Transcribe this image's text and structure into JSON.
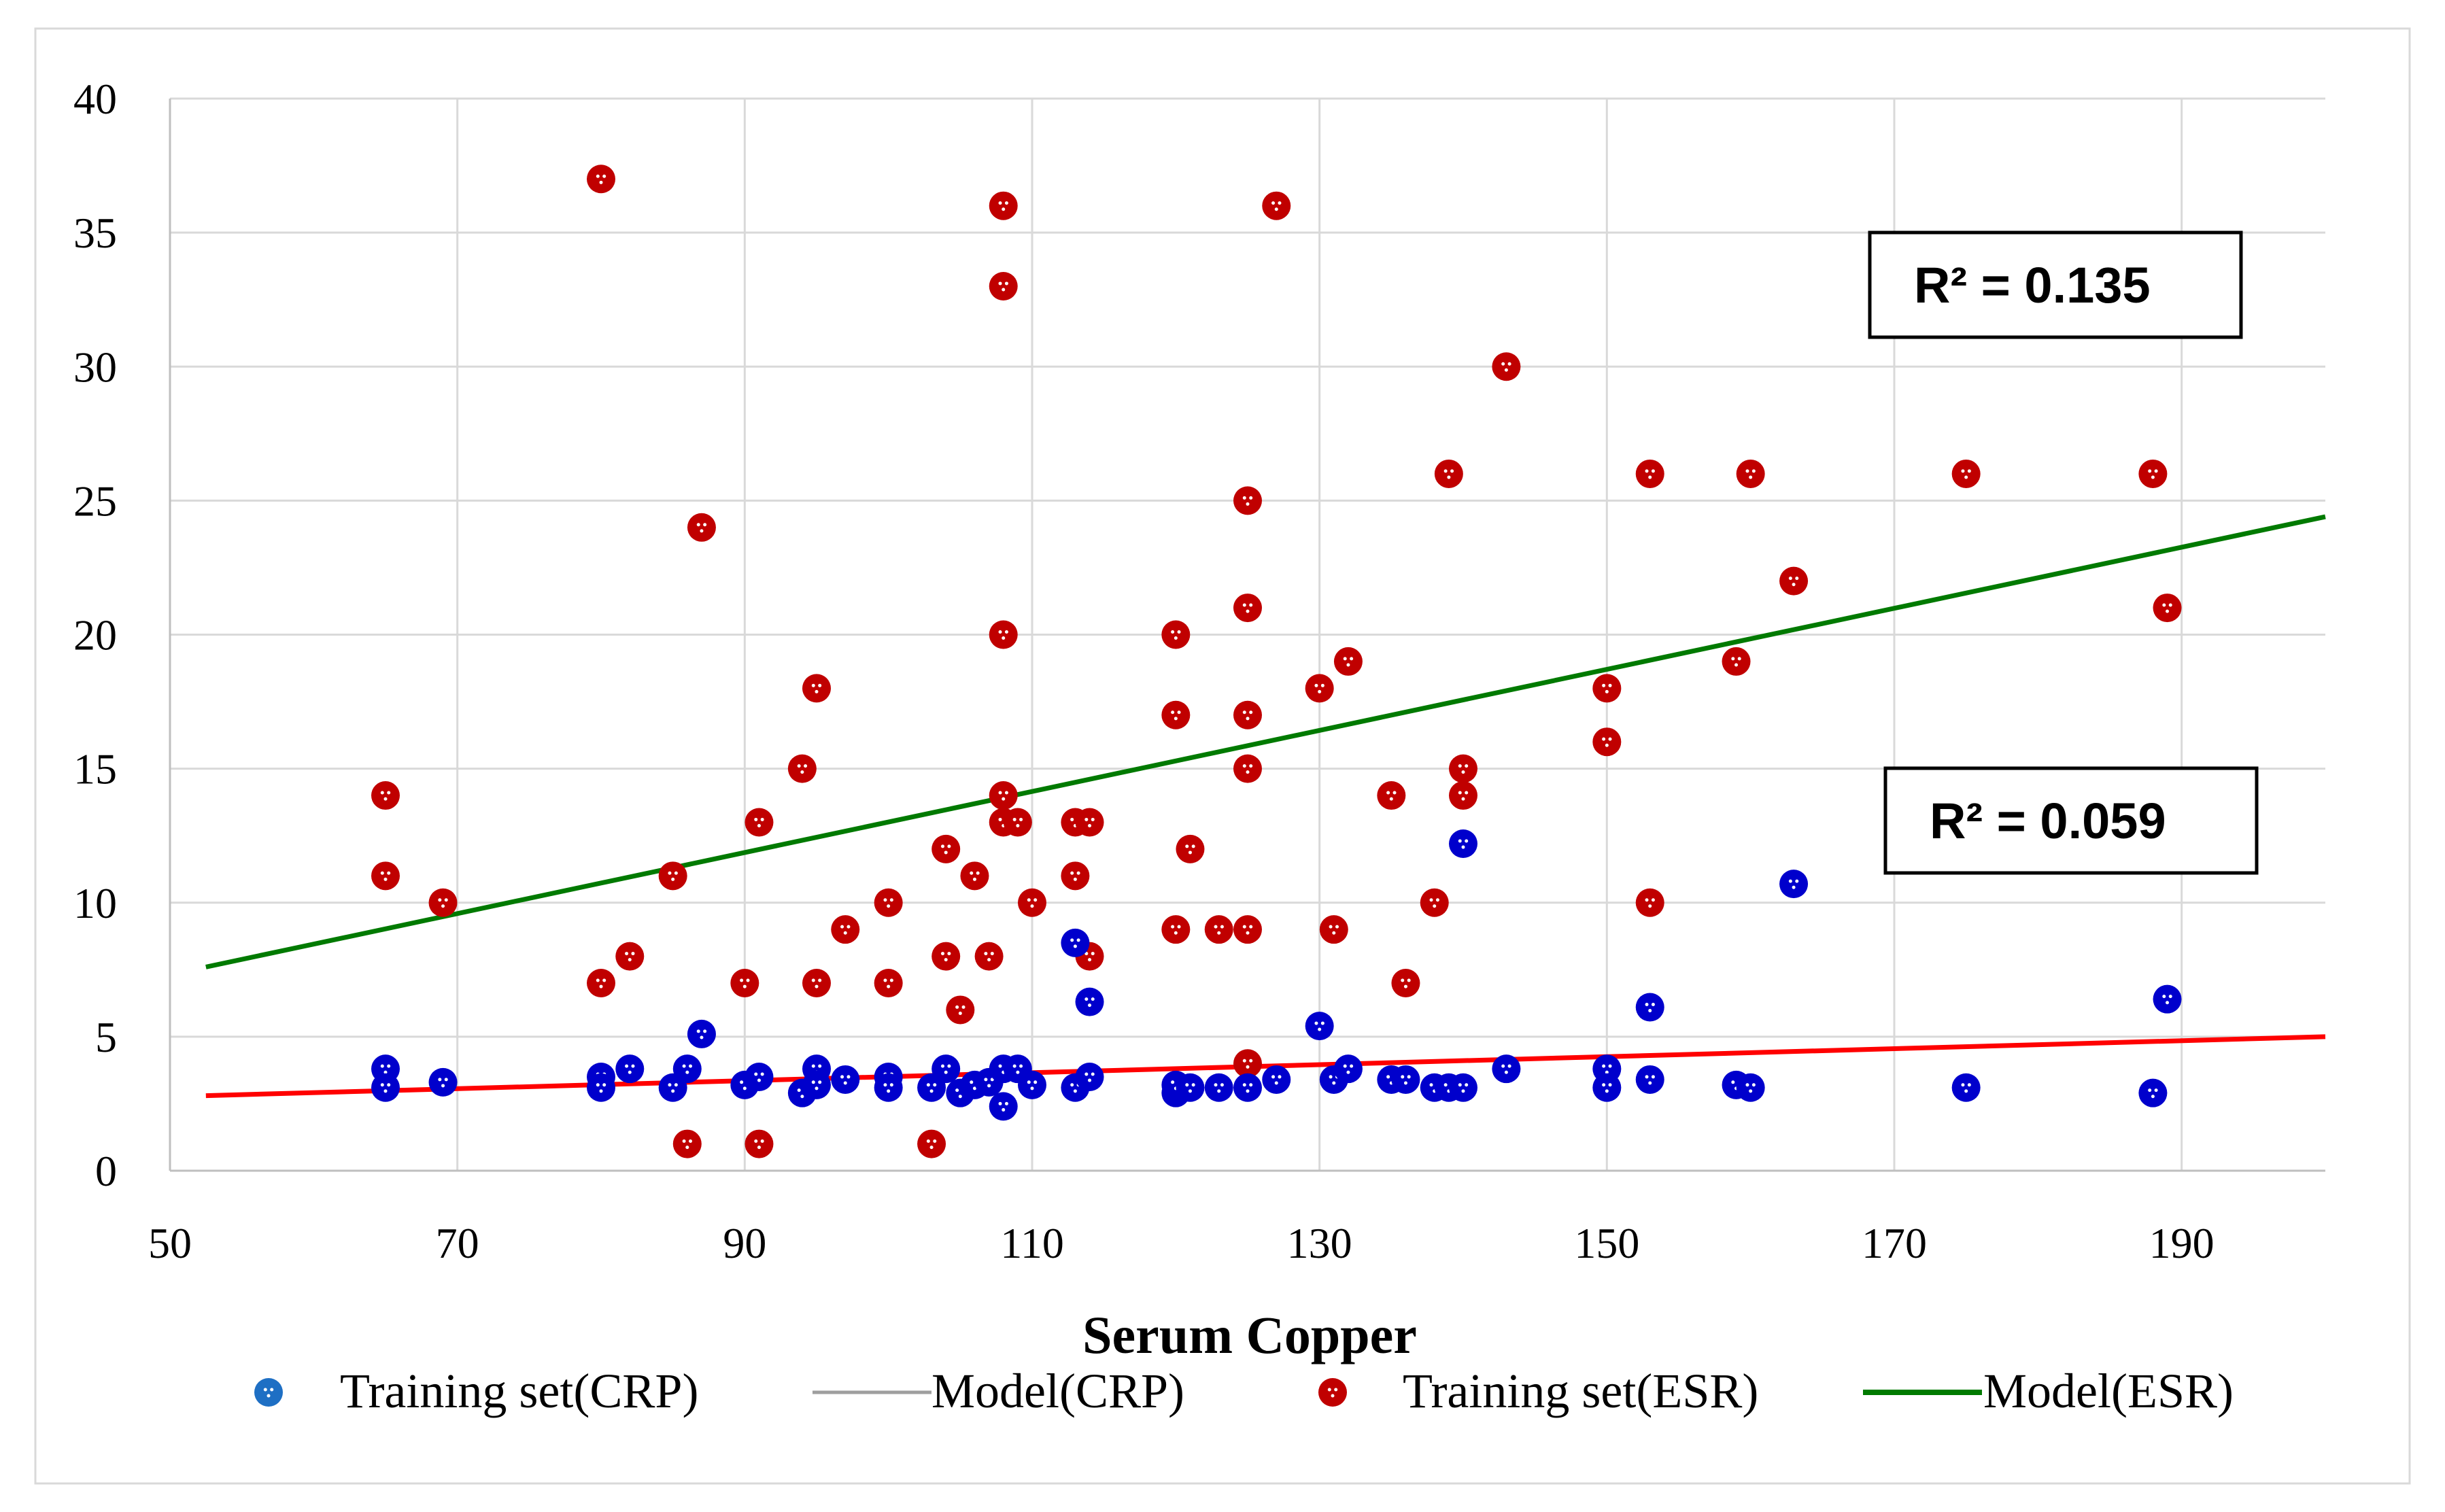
{
  "chart_data": {
    "type": "scatter",
    "title": "",
    "xlabel": "Serum Copper",
    "ylabel": "",
    "xlim": [
      50,
      200
    ],
    "ylim": [
      0,
      40
    ],
    "x_ticks": [
      50,
      70,
      90,
      110,
      130,
      150,
      170,
      190
    ],
    "y_ticks": [
      0,
      5,
      10,
      15,
      20,
      25,
      30,
      35,
      40
    ],
    "grid": "both",
    "legend_position": "bottom",
    "annotations": [
      {
        "text": "R² = 0.135",
        "target": "Model(ESR)"
      },
      {
        "text": "R² = 0.059",
        "target": "Model(CRP)"
      }
    ],
    "series": [
      {
        "name": "Training set(CRP)",
        "kind": "points",
        "color": "#0000cc",
        "legend_color": "#1e6fc4",
        "points": [
          [
            65,
            3.8
          ],
          [
            65,
            3.1
          ],
          [
            69,
            3.3
          ],
          [
            80,
            3.5
          ],
          [
            80,
            3.1
          ],
          [
            82,
            3.8
          ],
          [
            85,
            3.1
          ],
          [
            86,
            3.8
          ],
          [
            87,
            5.1
          ],
          [
            90,
            3.2
          ],
          [
            91,
            3.5
          ],
          [
            94,
            2.9
          ],
          [
            95,
            3.8
          ],
          [
            95,
            3.2
          ],
          [
            97,
            3.4
          ],
          [
            100,
            3.5
          ],
          [
            100,
            3.1
          ],
          [
            103,
            3.1
          ],
          [
            104,
            3.8
          ],
          [
            105,
            2.9
          ],
          [
            106,
            3.2
          ],
          [
            107,
            3.3
          ],
          [
            108,
            3.8
          ],
          [
            108,
            2.4
          ],
          [
            109,
            3.8
          ],
          [
            110,
            3.2
          ],
          [
            113,
            8.5
          ],
          [
            113,
            3.1
          ],
          [
            114,
            6.3
          ],
          [
            114,
            3.5
          ],
          [
            120,
            2.9
          ],
          [
            120,
            3.2
          ],
          [
            121,
            3.1
          ],
          [
            123,
            3.1
          ],
          [
            125,
            3.1
          ],
          [
            127,
            3.4
          ],
          [
            130,
            5.4
          ],
          [
            131,
            3.4
          ],
          [
            132,
            3.8
          ],
          [
            135,
            3.4
          ],
          [
            136,
            3.4
          ],
          [
            138,
            3.1
          ],
          [
            139,
            3.1
          ],
          [
            140,
            12.2
          ],
          [
            140,
            3.1
          ],
          [
            143,
            3.8
          ],
          [
            150,
            3.8
          ],
          [
            150,
            3.1
          ],
          [
            153,
            6.1
          ],
          [
            153,
            3.4
          ],
          [
            159,
            3.2
          ],
          [
            160,
            3.1
          ],
          [
            163,
            10.7
          ],
          [
            175,
            3.1
          ],
          [
            188,
            2.9
          ],
          [
            189,
            6.4
          ]
        ]
      },
      {
        "name": "Model(CRP)",
        "kind": "line",
        "color": "#ff0000",
        "legend_color": "#9e9e9e",
        "points": [
          [
            52.5,
            2.8
          ],
          [
            200,
            5.0
          ]
        ]
      },
      {
        "name": "Training set(ESR)",
        "kind": "points",
        "color": "#c00000",
        "legend_color": "#c00000",
        "points": [
          [
            65,
            14
          ],
          [
            65,
            11
          ],
          [
            69,
            10
          ],
          [
            80,
            37
          ],
          [
            80,
            7
          ],
          [
            82,
            8
          ],
          [
            85,
            11
          ],
          [
            86,
            1
          ],
          [
            87,
            24
          ],
          [
            90,
            7
          ],
          [
            91,
            13
          ],
          [
            91,
            1
          ],
          [
            94,
            15
          ],
          [
            95,
            18
          ],
          [
            95,
            7
          ],
          [
            97,
            9
          ],
          [
            100,
            10
          ],
          [
            100,
            7
          ],
          [
            103,
            1
          ],
          [
            104,
            12
          ],
          [
            104,
            8
          ],
          [
            105,
            6
          ],
          [
            106,
            11
          ],
          [
            107,
            8
          ],
          [
            108,
            36
          ],
          [
            108,
            33
          ],
          [
            108,
            20
          ],
          [
            108,
            14
          ],
          [
            108,
            13
          ],
          [
            109,
            13
          ],
          [
            110,
            10
          ],
          [
            113,
            13
          ],
          [
            113,
            11
          ],
          [
            114,
            13
          ],
          [
            114,
            8
          ],
          [
            120,
            20
          ],
          [
            120,
            17
          ],
          [
            120,
            9
          ],
          [
            121,
            12
          ],
          [
            123,
            9
          ],
          [
            125,
            25
          ],
          [
            125,
            21
          ],
          [
            125,
            17
          ],
          [
            125,
            15
          ],
          [
            125,
            9
          ],
          [
            125,
            4
          ],
          [
            127,
            36
          ],
          [
            130,
            18
          ],
          [
            131,
            9
          ],
          [
            132,
            19
          ],
          [
            135,
            14
          ],
          [
            136,
            7
          ],
          [
            138,
            10
          ],
          [
            139,
            26
          ],
          [
            140,
            15
          ],
          [
            140,
            14
          ],
          [
            143,
            30
          ],
          [
            150,
            18
          ],
          [
            150,
            16
          ],
          [
            153,
            26
          ],
          [
            153,
            10
          ],
          [
            159,
            19
          ],
          [
            160,
            26
          ],
          [
            163,
            22
          ],
          [
            175,
            26
          ],
          [
            188,
            26
          ],
          [
            189,
            21
          ]
        ]
      },
      {
        "name": "Model(ESR)",
        "kind": "line",
        "color": "#007a00",
        "legend_color": "#007a00",
        "points": [
          [
            52.5,
            7.6
          ],
          [
            200,
            24.4
          ]
        ]
      }
    ]
  }
}
